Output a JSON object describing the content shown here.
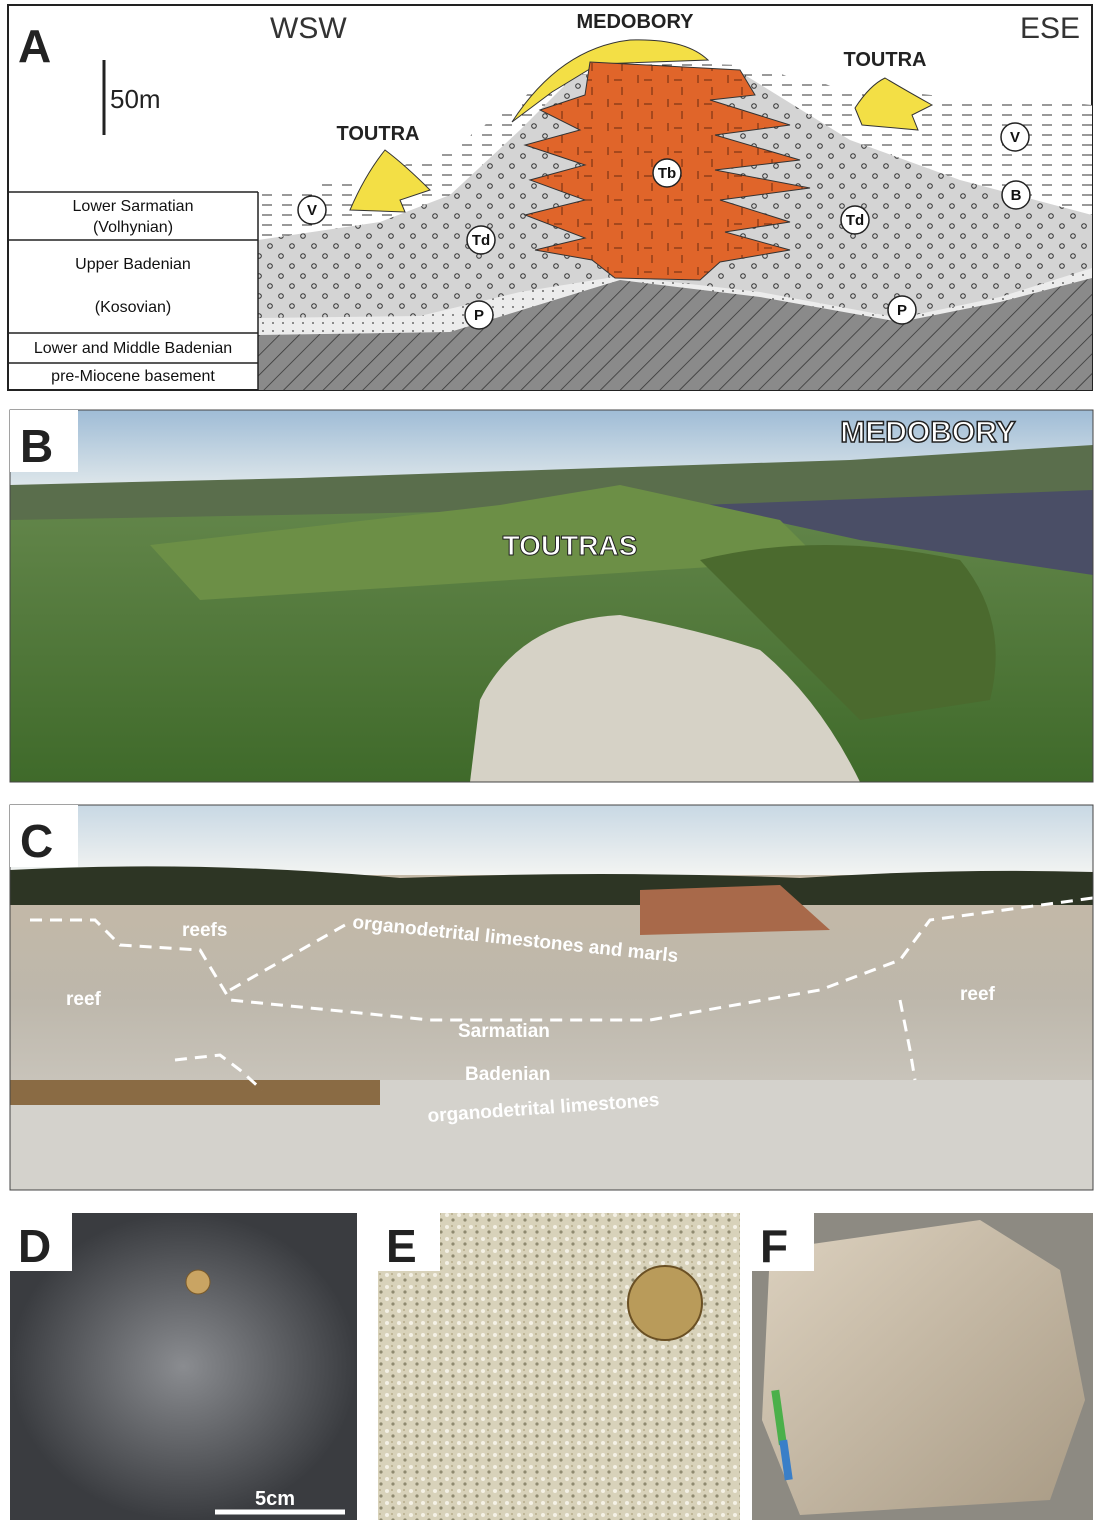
{
  "panel_a": {
    "label": "A",
    "left_direction": "WSW",
    "right_direction": "ESE",
    "scale_bar": "50m",
    "features": [
      "MEDOBORY",
      "TOUTRA",
      "TOUTRA"
    ],
    "units": [
      {
        "name": "Lower Sarmatian",
        "subname": "(Volhynian)"
      },
      {
        "name": "Upper Badenian",
        "subname": "(Kosovian)"
      },
      {
        "name": "Lower and Middle Badenian"
      },
      {
        "name": "pre-Miocene basement"
      }
    ],
    "symbols": [
      "V",
      "Td",
      "P",
      "Tb",
      "Td",
      "V",
      "B",
      "P"
    ]
  },
  "panel_b": {
    "label": "B",
    "labels": [
      "MEDOBORY",
      "TOUTRAS"
    ]
  },
  "panel_c": {
    "label": "C",
    "labels": [
      "reefs",
      "organodetrital limestones and marls",
      "reef",
      "Sarmatian",
      "Badenian",
      "reef",
      "organodetrital limestones"
    ]
  },
  "panel_d": {
    "label": "D",
    "scale_bar": "5cm"
  },
  "panel_e": {
    "label": "E"
  },
  "panel_f": {
    "label": "F"
  }
}
